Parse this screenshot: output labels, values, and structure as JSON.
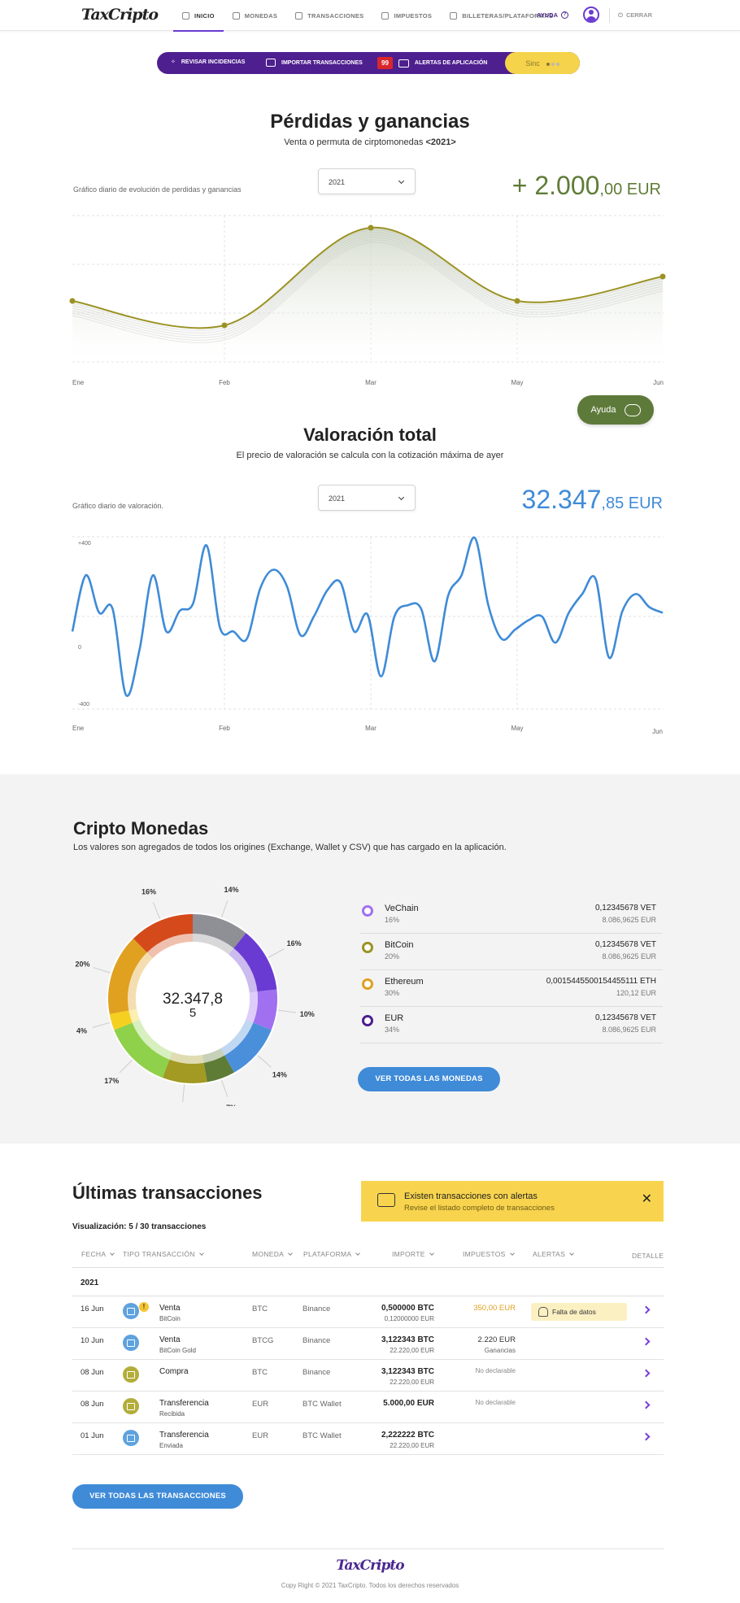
{
  "header": {
    "logo": "TaxCripto",
    "nav": [
      {
        "label": "INICIO",
        "icon": "grid-icon"
      },
      {
        "label": "MONEDAS",
        "icon": "diamond-icon"
      },
      {
        "label": "TRANSACCIONES",
        "icon": "link-icon"
      },
      {
        "label": "IMPUESTOS",
        "icon": "clock-icon"
      },
      {
        "label": "BILLETERAS/PLATAFORMAS",
        "icon": "wallet-icon"
      }
    ],
    "help": "AYUDA",
    "logout": "CERRAR"
  },
  "actions": {
    "review": "REVISAR INCIDENCIAS",
    "import": "IMPORTAR TRANSACCIONES",
    "alerts_count": "99",
    "alerts": "ALERTAS DE APLICACIÓN",
    "sync": "Sinc"
  },
  "pg": {
    "title": "Pérdidas y ganancias",
    "subtitle_prefix": "Venta o permuta de cirptomonedas ",
    "subtitle_year": "<2021>",
    "caption": "Gráfico diario de evolución de perdidas y ganancias",
    "year": "2021",
    "total_int": "+ 2.000",
    "total_dec": ",00 EUR"
  },
  "valoracion": {
    "title": "Valoración total",
    "subtitle": "El precio de valoración se calcula con la cotización máxima de ayer",
    "caption": "Gráfico diario de valoración.",
    "year": "2021",
    "total_int": "32.347",
    "total_dec": ",85 EUR"
  },
  "help_button": "Ayuda",
  "chart_data": [
    {
      "type": "area",
      "x": [
        "Ene",
        "Feb",
        "Mar",
        "May",
        "Jun"
      ],
      "values": [
        1,
        0,
        4,
        1,
        2
      ],
      "color": "#9b9224"
    },
    {
      "type": "line",
      "x_ticks": [
        "Ene",
        "Feb",
        "Mar",
        "May",
        "Jun"
      ],
      "y_ticks": [
        "+400",
        "0",
        "-400"
      ],
      "ylim": [
        -400,
        400
      ],
      "values": [
        -80,
        220,
        20,
        40,
        -420,
        -180,
        220,
        -80,
        30,
        70,
        380,
        -60,
        -80,
        -120,
        150,
        250,
        160,
        -100,
        0,
        140,
        180,
        -80,
        10,
        -320,
        0,
        60,
        40,
        -240,
        110,
        220,
        420,
        60,
        -120,
        -70,
        -20,
        0,
        -140,
        20,
        120,
        200,
        -220,
        30,
        120,
        50,
        20
      ],
      "color": "#3f8bd8"
    }
  ],
  "cripto": {
    "title": "Cripto Monedas",
    "subtitle": "Los valores son agregados de todos los origines (Exchange, Wallet y CSV) que has cargado en la aplicación.",
    "center_int": "32.347,8",
    "center_dec": "5",
    "donut": [
      {
        "pct": "14%",
        "value": 14,
        "color": "#8f8f96"
      },
      {
        "pct": "16%",
        "value": 16,
        "color": "#6a3bd2"
      },
      {
        "pct": "10%",
        "value": 10,
        "color": "#a070f0"
      },
      {
        "pct": "14%",
        "value": 14,
        "color": "#4a8fda"
      },
      {
        "pct": "7%",
        "value": 7,
        "color": "#5f7c37"
      },
      {
        "pct": "11%",
        "value": 11,
        "color": "#a29a22"
      },
      {
        "pct": "17%",
        "value": 17,
        "color": "#8fd14a"
      },
      {
        "pct": "4%",
        "value": 4,
        "color": "#f5d020"
      },
      {
        "pct": "20%",
        "value": 20,
        "color": "#e0a020"
      },
      {
        "pct": "16%",
        "value": 16,
        "color": "#d44a1a"
      }
    ],
    "coins": [
      {
        "name": "VeChain",
        "pct": "16%",
        "amount": "0,12345678 VET",
        "eur": "8.086,9625 EUR",
        "color": "#a070f0"
      },
      {
        "name": "BitCoin",
        "pct": "20%",
        "amount": "0,12345678 VET",
        "eur": "8.086,9625 EUR",
        "color": "#9b9224"
      },
      {
        "name": "Ethereum",
        "pct": "30%",
        "amount": "0,0015445500154455111 ETH",
        "eur": "120,12 EUR",
        "color": "#e0a020"
      },
      {
        "name": "EUR",
        "pct": "34%",
        "amount": "0,12345678 VET",
        "eur": "8.086,9625 EUR",
        "color": "#4e1f8f"
      }
    ],
    "button": "VER TODAS LAS MONEDAS"
  },
  "transactions": {
    "title": "Últimas transacciones",
    "visualization": "Visualización: 5 / 30 transacciones",
    "alert_title": "Existen transacciones con alertas",
    "alert_sub": "Revise el listado completo de transacciones",
    "headers": {
      "fecha": "FECHA",
      "tipo": "TIPO TRANSACCIÓN",
      "moneda": "MONEDA",
      "plataforma": "PLATAFORMA",
      "importe": "IMPORTE",
      "impuestos": "IMPUESTOS",
      "alertas": "ALERTAS",
      "detalle": "DETALLE"
    },
    "year": "2021",
    "rows": [
      {
        "date": "16 Jun",
        "type": "Venta",
        "sub": "BitCoin",
        "coin": "BTC",
        "platform": "Binance",
        "amount": "0,500000 BTC",
        "amount_eur": "0,12000000 EUR",
        "tax": "350,00 EUR",
        "tax_sub": "",
        "alert": "Falta de datos",
        "icon_color": "#5ea2de"
      },
      {
        "date": "10 Jun",
        "type": "Venta",
        "sub": "BitCoin Gold",
        "coin": "BTCG",
        "platform": "Binance",
        "amount": "3,122343 BTC",
        "amount_eur": "22.220,00 EUR",
        "tax": "2.220 EUR",
        "tax_sub": "Ganancias",
        "alert": "",
        "icon_color": "#5ea2de"
      },
      {
        "date": "08 Jun",
        "type": "Compra",
        "sub": "",
        "coin": "BTC",
        "platform": "Binance",
        "amount": "3,122343 BTC",
        "amount_eur": "22.220,00 EUR",
        "tax": "No declarable",
        "tax_sub": "",
        "alert": "",
        "icon_color": "#b3ad3a"
      },
      {
        "date": "08 Jun",
        "type": "Transferencia",
        "sub": "Recibida",
        "coin": "EUR",
        "platform": "BTC Wallet",
        "amount": "5.000,00 EUR",
        "amount_eur": "",
        "tax": "No declarable",
        "tax_sub": "",
        "alert": "",
        "icon_color": "#b3ad3a"
      },
      {
        "date": "01 Jun",
        "type": "Transferencia",
        "sub": "Enviada",
        "coin": "EUR",
        "platform": "BTC Wallet",
        "amount": "2,222222 BTC",
        "amount_eur": "22.220,00 EUR",
        "tax": "",
        "tax_sub": "",
        "alert": "",
        "icon_color": "#5ea2de"
      }
    ],
    "button": "VER TODAS LAS TRANSACCIONES"
  },
  "footer": {
    "logo": "TaxCripto",
    "copyright": "Copy Right © 2021 TaxCripto. Todos los derechos reservados"
  }
}
